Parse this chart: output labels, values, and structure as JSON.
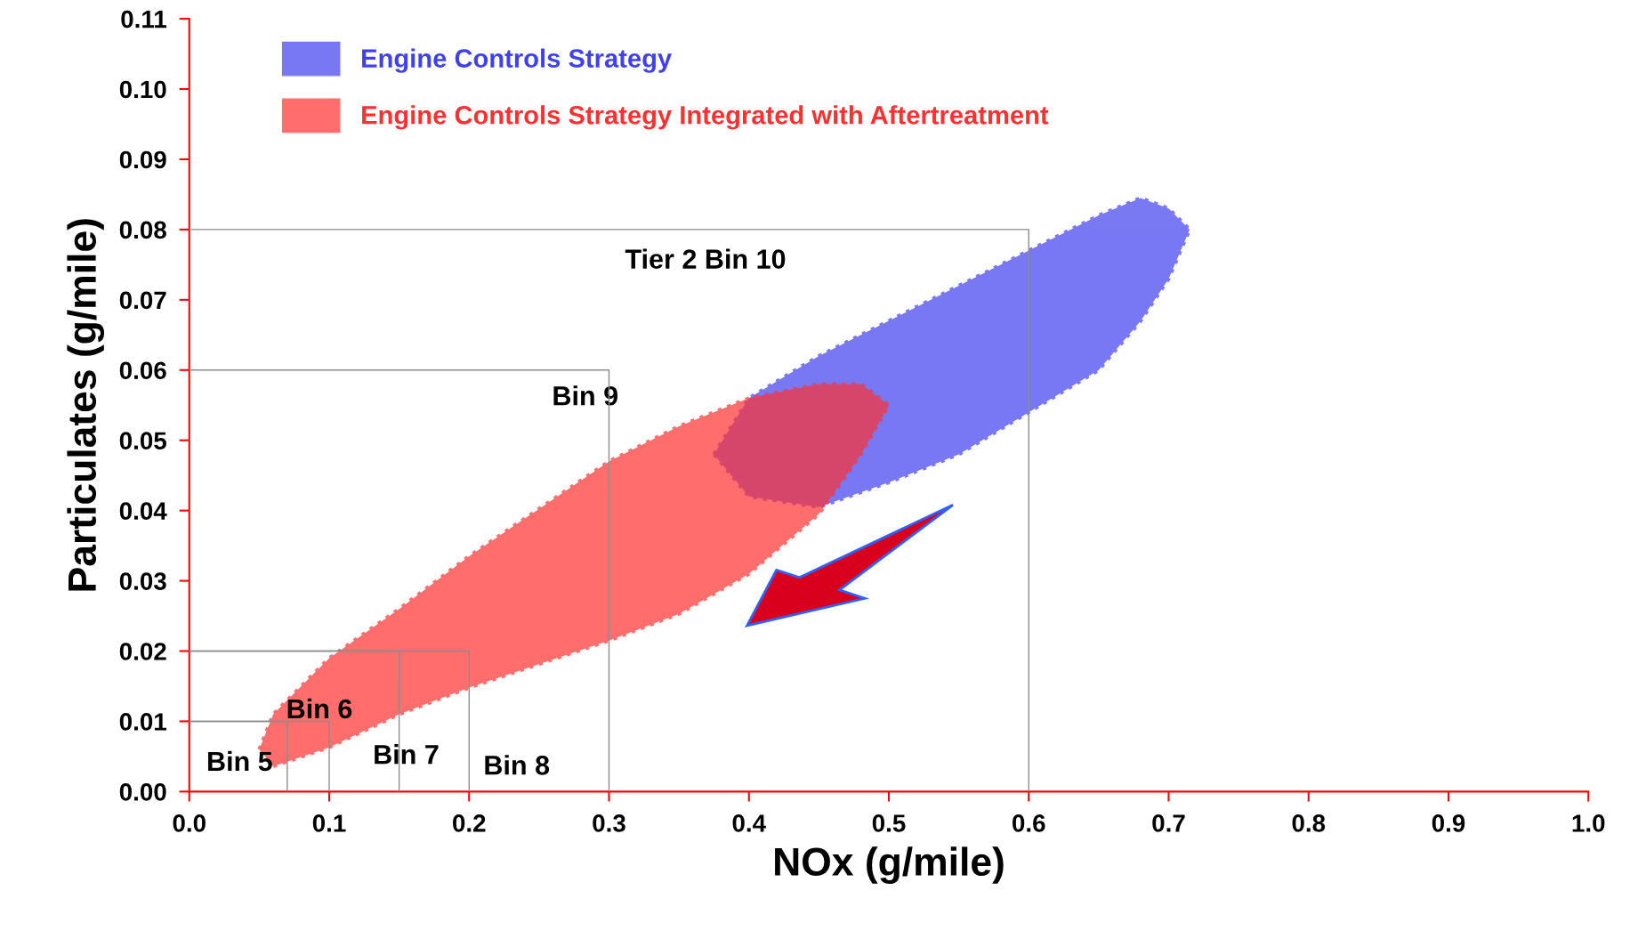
{
  "chart_data": {
    "type": "area",
    "xlabel": "NOx (g/mile)",
    "ylabel": "Particulates (g/mile)",
    "xlim": [
      0,
      1
    ],
    "ylim": [
      0,
      0.11
    ],
    "xticks": [
      {
        "value": 0,
        "label": "0.0"
      },
      {
        "value": 0.1,
        "label": "0.1"
      },
      {
        "value": 0.2,
        "label": "0.2"
      },
      {
        "value": 0.3,
        "label": "0.3"
      },
      {
        "value": 0.4,
        "label": "0.4"
      },
      {
        "value": 0.5,
        "label": "0.5"
      },
      {
        "value": 0.6,
        "label": "0.6"
      },
      {
        "value": 0.7,
        "label": "0.7"
      },
      {
        "value": 0.8,
        "label": "0.8"
      },
      {
        "value": 0.9,
        "label": "0.9"
      },
      {
        "value": 1,
        "label": "1.0"
      }
    ],
    "yticks": [
      {
        "value": 0,
        "label": "0.00"
      },
      {
        "value": 0.01,
        "label": "0.01"
      },
      {
        "value": 0.02,
        "label": "0.02"
      },
      {
        "value": 0.03,
        "label": "0.03"
      },
      {
        "value": 0.04,
        "label": "0.04"
      },
      {
        "value": 0.05,
        "label": "0.05"
      },
      {
        "value": 0.06,
        "label": "0.06"
      },
      {
        "value": 0.07,
        "label": "0.07"
      },
      {
        "value": 0.08,
        "label": "0.08"
      },
      {
        "value": 0.09,
        "label": "0.09"
      },
      {
        "value": 0.1,
        "label": "0.10"
      },
      {
        "value": 0.11,
        "label": "0.11"
      }
    ],
    "legend": "top left",
    "grid": false,
    "series": [
      {
        "type": "line",
        "color": "#8c8c8c",
        "line_style": "solid",
        "x": [
          0,
          0.6,
          0.6
        ],
        "values": [
          0.08,
          0.08,
          0
        ]
      },
      {
        "type": "line",
        "color": "#8c8c8c",
        "line_style": "solid",
        "x": [
          0,
          0.3,
          0.3
        ],
        "values": [
          0.06,
          0.06,
          0
        ]
      },
      {
        "type": "line",
        "color": "#8c8c8c",
        "line_style": "solid",
        "x": [
          0,
          0.2,
          0.2
        ],
        "values": [
          0.02,
          0.02,
          0
        ]
      },
      {
        "type": "line",
        "color": "#8c8c8c",
        "line_style": "solid",
        "x": [
          0,
          0.15,
          0.15
        ],
        "values": [
          0.02,
          0.02,
          0
        ]
      },
      {
        "type": "line",
        "color": "#8c8c8c",
        "line_style": "solid",
        "x": [
          0,
          0.1,
          0.1
        ],
        "values": [
          0.01,
          0.01,
          0
        ]
      },
      {
        "type": "line",
        "color": "#8c8c8c",
        "line_style": "solid",
        "x": [
          0,
          0.07,
          0.07
        ],
        "values": [
          0.01,
          0.01,
          0
        ]
      },
      {
        "name": "Engine Controls Strategy",
        "color": "#4040f0",
        "line_style": "dotted",
        "x": [
          0.375,
          0.4,
          0.45,
          0.5,
          0.55,
          0.6,
          0.65,
          0.68,
          0.7,
          0.715,
          0.7,
          0.68,
          0.65,
          0.6,
          0.55,
          0.5,
          0.45,
          0.4
        ],
        "values": [
          0.048,
          0.056,
          0.062,
          0.067,
          0.072,
          0.077,
          0.082,
          0.0845,
          0.083,
          0.08,
          0.073,
          0.067,
          0.06,
          0.054,
          0.048,
          0.044,
          0.0405,
          0.042
        ]
      },
      {
        "name": "Engine Controls Strategy Integrated with Aftertreatment",
        "color": "#ff3030",
        "line_style": "dotted",
        "x": [
          0.05,
          0.06,
          0.1,
          0.15,
          0.2,
          0.3,
          0.35,
          0.4,
          0.45,
          0.48,
          0.5,
          0.48,
          0.45,
          0.4,
          0.35,
          0.3,
          0.2,
          0.15,
          0.1,
          0.06
        ],
        "values": [
          0.006,
          0.011,
          0.019,
          0.026,
          0.0335,
          0.047,
          0.052,
          0.056,
          0.058,
          0.058,
          0.055,
          0.048,
          0.0395,
          0.031,
          0.0253,
          0.0215,
          0.0148,
          0.011,
          0.0063,
          0.0036
        ]
      }
    ],
    "annotations": [
      "Tier 2 Bin 10",
      "Bin 9",
      "Bin 8",
      "Bin 7",
      "Bin 6",
      "Bin 5"
    ]
  }
}
